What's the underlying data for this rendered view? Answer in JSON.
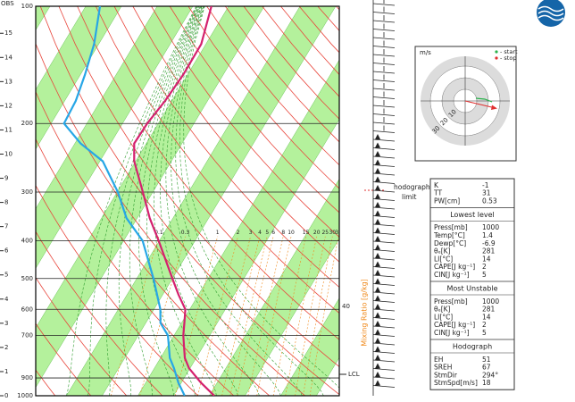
{
  "chart_data": {
    "type": "skew-t",
    "corner_label": "OBS",
    "ylim": [
      1000,
      100
    ],
    "log_scale": true,
    "yticks": [
      100,
      200,
      300,
      400,
      500,
      600,
      700,
      900,
      1000
    ],
    "y2ticks": [
      0,
      1,
      2,
      3,
      4,
      5,
      6,
      7,
      8,
      9,
      10,
      11,
      12,
      13,
      14,
      15
    ],
    "y": [
      1000,
      925,
      850,
      800,
      700,
      650,
      600,
      550,
      500,
      400,
      350,
      300,
      250,
      225,
      200,
      175,
      150,
      125,
      100
    ],
    "series": [
      {
        "color": "#d4216e",
        "values": [
          1.4,
          -4.6,
          -10.3,
          -13.2,
          -17.4,
          -19.2,
          -21.2,
          -25.6,
          -30.0,
          -40.2,
          -46.5,
          -52.8,
          -60.4,
          -63.4,
          -63.1,
          -61.9,
          -61.2,
          -61.3,
          -64.8
        ]
      },
      {
        "color": "#27a6e6",
        "values": [
          -6.9,
          -10.9,
          -14.5,
          -17.4,
          -21.7,
          -25.9,
          -28.2,
          -31.6,
          -35.3,
          -44.7,
          -53.0,
          -59.8,
          -69.2,
          -78.4,
          -86.4,
          -86.9,
          -88.7,
          -91.3,
          -96.0
        ]
      }
    ],
    "mixing_ratio_title": "Mixing Ratio [g/kg]",
    "mixing_ratios": [
      0.1,
      0.3,
      1,
      2,
      3,
      4,
      5,
      6,
      8,
      10,
      15,
      20,
      25,
      30,
      35
    ],
    "annotations": {
      "lcl": "LCL",
      "level": "40",
      "hodograph_limit": [
        "hodograph",
        "limit"
      ]
    }
  },
  "hodograph": {
    "unit": "m/s",
    "rings": [
      10,
      20,
      30
    ],
    "legend": [
      "- start",
      "- stop"
    ],
    "legend_colors": [
      "#2bb24c",
      "#e03030"
    ]
  },
  "indices": [
    {
      "rows": [
        [
          "K",
          "-1"
        ],
        [
          "TT",
          "31"
        ],
        [
          "PW[cm]",
          "0.53"
        ]
      ]
    },
    {
      "title": "Lowest level",
      "rows": [
        [
          "Press[mb]",
          "1000"
        ],
        [
          "Temp[°C]",
          "1.4"
        ],
        [
          "Dewp[°C]",
          "-6.9"
        ],
        [
          "θₑ[K]",
          "281"
        ],
        [
          "LI[°C]",
          "14"
        ],
        [
          "CAPE[J kg⁻¹]",
          "2"
        ],
        [
          "CIN[J kg⁻¹]",
          "5"
        ]
      ]
    },
    {
      "title": "Most Unstable",
      "rows": [
        [
          "Press[mb]",
          "1000"
        ],
        [
          "θₑ[K]",
          "281"
        ],
        [
          "LI[°C]",
          "14"
        ],
        [
          "CAPE[J kg⁻¹]",
          "2"
        ],
        [
          "CIN[J kg⁻¹]",
          "5"
        ]
      ]
    },
    {
      "title": "Hodograph",
      "rows": [
        [
          "EH",
          "51"
        ],
        [
          "SREH",
          "67"
        ],
        [
          "StmDir",
          "294°"
        ],
        [
          "StmSpd[m/s]",
          "18"
        ]
      ]
    }
  ]
}
